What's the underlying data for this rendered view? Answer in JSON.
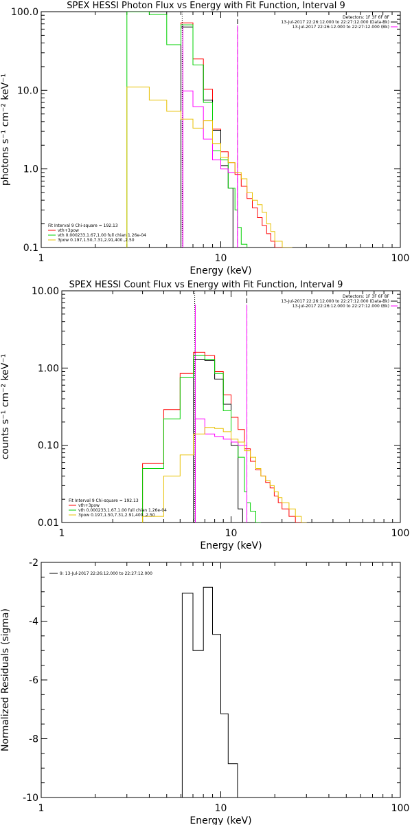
{
  "chart_data": [
    {
      "type": "line",
      "title": "SPEX HESSI Photon Flux vs Energy with Fit Function, Interval 9",
      "xlabel": "Energy (keV)",
      "ylabel": "photons s⁻¹ cm⁻² keV⁻¹",
      "xscale": "log",
      "yscale": "log",
      "xlim": [
        1,
        100
      ],
      "ylim": [
        0.1,
        100
      ],
      "xtick_labels": [
        "1",
        "10",
        "100"
      ],
      "ytick_labels": [
        "100.0",
        "10.0",
        "1.0",
        "0.1"
      ],
      "header_lines": [
        "Detectors: 1F 3F 6F 8F",
        "13-Jul-2017 22:26:12.000 to 22:27:12.000 (Data-Bk)",
        "13-Jul-2017 22:26:12.000 to 22:27:12.000 (Bk)"
      ],
      "legend_lines": [
        "Fit Interval  9     Chi-square = 192.13",
        "vth+3pow",
        "vth 0.000233,1.67,1.00   full chian 1.26e-04",
        "3pow 0.197,1.50,7.31,2.91,400.,2.50"
      ],
      "vlines": [
        {
          "x": 6.1,
          "style": "dotted",
          "color": "#000000"
        },
        {
          "x": 6.15,
          "style": "solid",
          "color": "#ff00ff"
        },
        {
          "x": 12.4,
          "style": "dashed",
          "color": "#000000"
        },
        {
          "x": 12.4,
          "style": "solid",
          "color": "#ff00ff"
        }
      ],
      "series": [
        {
          "name": "vth+3pow",
          "color": "#ff0000",
          "edges": [
            6,
            7,
            8,
            9,
            10,
            11,
            12,
            13,
            14,
            15,
            16,
            17,
            18,
            19,
            20,
            21,
            22,
            23,
            24,
            25
          ],
          "values": [
            72,
            25,
            10.3,
            3.2,
            1.65,
            1.2,
            0.85,
            0.6,
            0.42,
            0.32,
            0.24,
            0.19,
            0.15,
            0.12,
            0.1,
            0.1,
            0.1,
            0.1,
            0.1
          ]
        },
        {
          "name": "Data-Bk",
          "color": "#000000",
          "edges": [
            6,
            7,
            8,
            9,
            10,
            11,
            11.7,
            12.4
          ],
          "values": [
            64,
            21,
            7.5,
            3.1,
            1.1,
            0.57,
            0.1
          ]
        },
        {
          "name": "vth",
          "color": "#00d000",
          "edges": [
            3,
            4,
            5,
            6,
            7,
            8,
            9,
            10,
            11,
            12,
            12.4,
            13,
            14
          ],
          "values": [
            100,
            92,
            38,
            68,
            21,
            7,
            1.7,
            1.3,
            0.57,
            0.3,
            0.18,
            0.11
          ]
        },
        {
          "name": "Bk",
          "color": "#ff00ff",
          "edges": [
            6.15,
            7,
            8,
            9,
            10,
            11,
            12.4
          ],
          "values": [
            9.8,
            6.2,
            2.4,
            1.3,
            1.0,
            0.9
          ]
        },
        {
          "name": "3pow",
          "color": "#e8c000",
          "edges": [
            3,
            4,
            5,
            6,
            7,
            8,
            9,
            10,
            11,
            12,
            13,
            14,
            15,
            16,
            17,
            18,
            19,
            20,
            22,
            24,
            25
          ],
          "values": [
            11,
            7.5,
            5.4,
            4.3,
            3.3,
            4.1,
            2.1,
            1.4,
            1.2,
            0.9,
            0.75,
            0.5,
            0.4,
            0.35,
            0.28,
            0.2,
            0.16,
            0.12,
            0.1,
            0.1
          ]
        }
      ]
    },
    {
      "type": "line",
      "title": "SPEX HESSI Count Flux vs Energy with Fit Function, Interval 9",
      "xlabel": "Energy (keV)",
      "ylabel": "counts s⁻¹ cm⁻² keV⁻¹",
      "xscale": "log",
      "yscale": "log",
      "xlim": [
        1,
        100
      ],
      "ylim": [
        0.01,
        10
      ],
      "xtick_labels": [
        "1",
        "10",
        "100"
      ],
      "ytick_labels": [
        "10.00",
        "1.00",
        "0.10",
        "0.01"
      ],
      "header_lines": [
        "Detectors: 1F 3F 6F 8F",
        "13-Jul-2017 22:26:12.000 to 22:27:12.000 (Data-Bk)",
        "13-Jul-2017 22:26:12.000 to 22:27:12.000 (Bk)"
      ],
      "legend_lines": [
        "Fit Interval  9     Chi-square = 192.13",
        "vth+3pow",
        "vth 0.000233,1.67,1.00   full chian 1.26e-04",
        "3pow 0.197,1.50,7.31,2.91,400.,2.50"
      ],
      "vlines": [
        {
          "x": 6.1,
          "style": "dotted",
          "color": "#000000"
        },
        {
          "x": 6.15,
          "style": "solid",
          "color": "#ff00ff"
        },
        {
          "x": 12.4,
          "style": "dashed",
          "color": "#000000"
        },
        {
          "x": 12.4,
          "style": "solid",
          "color": "#ff00ff"
        }
      ],
      "series": [
        {
          "name": "vth+3pow",
          "color": "#ff0000",
          "edges": [
            3,
            4,
            5,
            6,
            7,
            8,
            9,
            10,
            11,
            12,
            13,
            14,
            15,
            16,
            17,
            18,
            19,
            20,
            22,
            24,
            26,
            28
          ],
          "values": [
            0.058,
            0.29,
            0.85,
            1.6,
            1.45,
            0.9,
            0.45,
            0.23,
            0.16,
            0.09,
            0.062,
            0.048,
            0.04,
            0.033,
            0.028,
            0.022,
            0.018,
            0.015,
            0.012,
            0.01,
            0.01
          ]
        },
        {
          "name": "Data-Bk",
          "color": "#000000",
          "edges": [
            6,
            7,
            8,
            9,
            10,
            11,
            11.7,
            12.4
          ],
          "values": [
            1.3,
            1.25,
            0.72,
            0.34,
            0.1,
            0.015,
            0.01
          ]
        },
        {
          "name": "vth",
          "color": "#00d000",
          "edges": [
            3,
            4,
            5,
            6,
            7,
            8,
            9,
            10,
            11,
            12,
            12.4,
            13,
            14,
            15
          ],
          "values": [
            0.05,
            0.22,
            0.75,
            1.45,
            1.3,
            0.85,
            0.28,
            0.11,
            0.07,
            0.025,
            0.018,
            0.014,
            0.01
          ]
        },
        {
          "name": "Bk",
          "color": "#ff00ff",
          "edges": [
            6.15,
            7,
            8,
            9,
            10,
            11,
            12.4
          ],
          "values": [
            0.22,
            0.14,
            0.13,
            0.12,
            0.11,
            0.1
          ]
        },
        {
          "name": "3pow",
          "color": "#e8c000",
          "edges": [
            3,
            4,
            5,
            6,
            7,
            8,
            9,
            10,
            11,
            12,
            13,
            14,
            15,
            16,
            17,
            18,
            19,
            20,
            22,
            24,
            26,
            28
          ],
          "values": [
            0.012,
            0.04,
            0.075,
            0.14,
            0.17,
            0.165,
            0.15,
            0.12,
            0.11,
            0.085,
            0.07,
            0.05,
            0.04,
            0.035,
            0.03,
            0.025,
            0.021,
            0.018,
            0.015,
            0.012,
            0.01
          ]
        }
      ]
    },
    {
      "type": "line",
      "title": "",
      "xlabel": "Energy (keV)",
      "ylabel": "Normalized Residuals (sigma)",
      "xscale": "log",
      "yscale": "linear",
      "xlim": [
        1,
        100
      ],
      "ylim": [
        -10,
        -2
      ],
      "xtick_labels": [
        "1",
        "10",
        "100"
      ],
      "ytick_labels": [
        "-2",
        "-4",
        "-6",
        "-8",
        "-10"
      ],
      "legend_lines": [
        "9: 13-Jul-2017 22:26:12.000 to 22:27:12.000"
      ],
      "series": [
        {
          "name": "9: 13-Jul-2017 22:26:12.000 to 22:27:12.000",
          "color": "#000000",
          "edges": [
            6.1,
            7,
            8,
            9,
            10,
            11,
            12.4
          ],
          "values": [
            -3.05,
            -5.0,
            -2.85,
            -4.45,
            -7.15,
            -8.85
          ]
        }
      ]
    }
  ]
}
